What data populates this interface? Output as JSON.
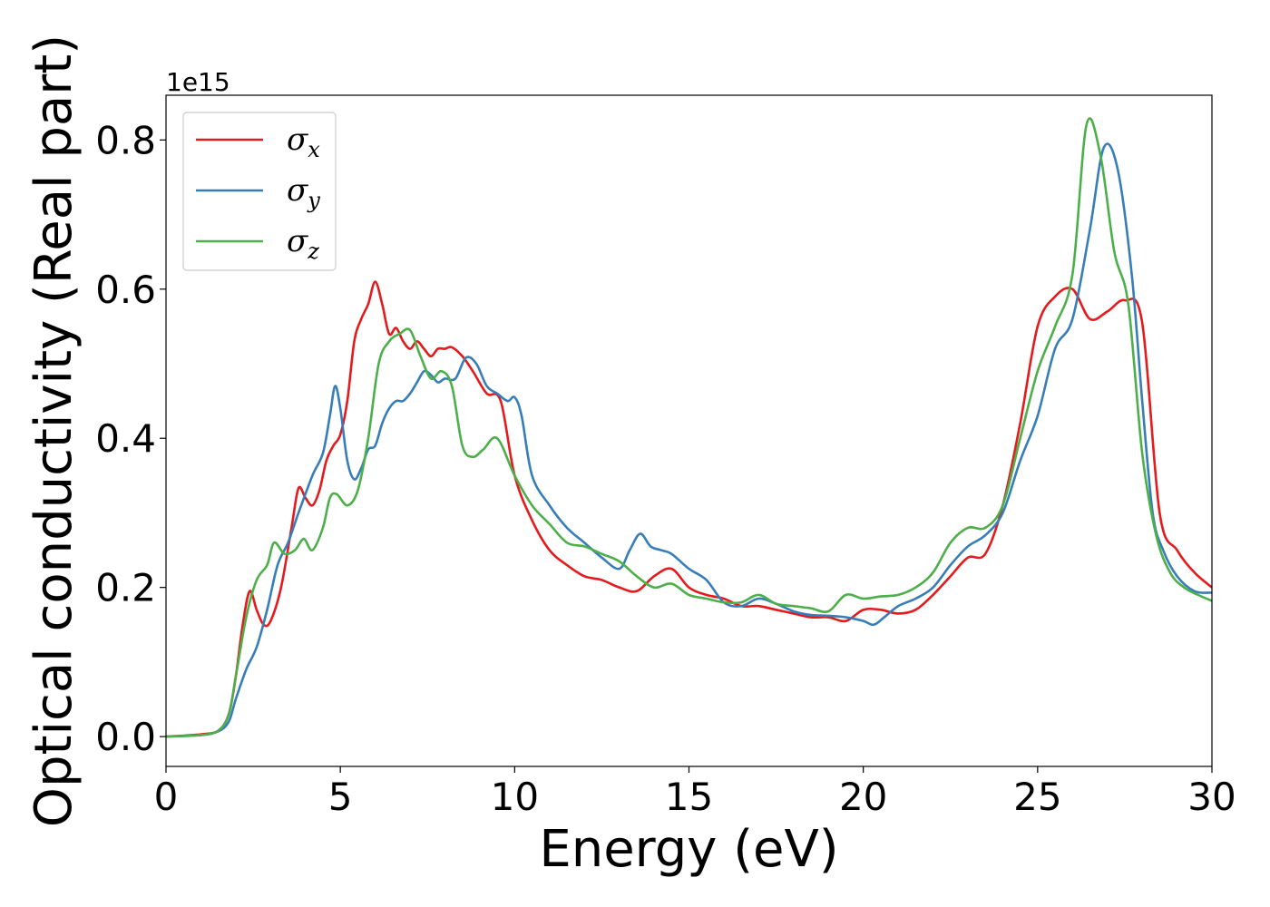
{
  "chart_data": {
    "type": "line",
    "xlabel": "Energy (eV)",
    "ylabel": "Optical conductivity (Real part)",
    "y_offset_label": "1e15",
    "y_scale_factor": 1000000000000000.0,
    "xlim": [
      0,
      30
    ],
    "ylim": [
      -0.04,
      0.86
    ],
    "xticks": [
      0,
      5,
      10,
      15,
      20,
      25,
      30
    ],
    "xtick_labels": [
      "0",
      "5",
      "10",
      "15",
      "20",
      "25",
      "30"
    ],
    "yticks": [
      0.0,
      0.2,
      0.4,
      0.6,
      0.8
    ],
    "ytick_labels": [
      "0.0",
      "0.2",
      "0.4",
      "0.6",
      "0.8"
    ],
    "grid": false,
    "legend_position": "top-left",
    "series": [
      {
        "name": "σx",
        "symbol": "σ",
        "subscript": "x",
        "color": "#e41a1c",
        "x": [
          0,
          1,
          1.5,
          1.8,
          2.0,
          2.2,
          2.4,
          2.6,
          2.8,
          3.0,
          3.3,
          3.6,
          3.8,
          4.0,
          4.2,
          4.4,
          4.6,
          4.8,
          5.0,
          5.2,
          5.4,
          5.6,
          5.8,
          6.0,
          6.2,
          6.4,
          6.6,
          6.8,
          7.0,
          7.2,
          7.4,
          7.6,
          7.8,
          8.0,
          8.2,
          8.5,
          8.8,
          9.2,
          9.6,
          10.0,
          10.5,
          11.0,
          11.5,
          12.0,
          12.5,
          13.0,
          13.5,
          14.0,
          14.5,
          15.0,
          15.5,
          16.0,
          16.5,
          17.0,
          17.5,
          18.0,
          18.5,
          19.0,
          19.5,
          20.0,
          20.5,
          21.0,
          21.5,
          22.0,
          22.5,
          23.0,
          23.5,
          24.0,
          24.5,
          25.0,
          25.5,
          26.0,
          26.5,
          27.0,
          27.5,
          28.0,
          28.5,
          29.0,
          29.5,
          30.0
        ],
        "y": [
          0.0,
          0.003,
          0.008,
          0.03,
          0.08,
          0.15,
          0.195,
          0.17,
          0.15,
          0.155,
          0.2,
          0.28,
          0.333,
          0.32,
          0.31,
          0.33,
          0.37,
          0.39,
          0.405,
          0.45,
          0.53,
          0.56,
          0.58,
          0.61,
          0.58,
          0.54,
          0.548,
          0.53,
          0.52,
          0.53,
          0.52,
          0.51,
          0.52,
          0.52,
          0.522,
          0.51,
          0.49,
          0.46,
          0.45,
          0.35,
          0.29,
          0.25,
          0.23,
          0.215,
          0.21,
          0.2,
          0.195,
          0.215,
          0.225,
          0.2,
          0.19,
          0.185,
          0.175,
          0.175,
          0.17,
          0.165,
          0.16,
          0.16,
          0.155,
          0.17,
          0.17,
          0.165,
          0.17,
          0.19,
          0.215,
          0.24,
          0.245,
          0.31,
          0.42,
          0.55,
          0.59,
          0.6,
          0.56,
          0.57,
          0.585,
          0.555,
          0.3,
          0.25,
          0.22,
          0.2
        ]
      },
      {
        "name": "σy",
        "symbol": "σ",
        "subscript": "y",
        "color": "#377eb8",
        "x": [
          0,
          1,
          1.5,
          1.8,
          2.0,
          2.3,
          2.6,
          2.9,
          3.2,
          3.5,
          3.8,
          4.2,
          4.5,
          4.7,
          4.85,
          5.0,
          5.2,
          5.4,
          5.6,
          5.8,
          6.0,
          6.2,
          6.4,
          6.6,
          6.8,
          7.0,
          7.2,
          7.4,
          7.6,
          7.8,
          8.0,
          8.3,
          8.6,
          8.9,
          9.2,
          9.5,
          9.8,
          10.0,
          10.2,
          10.5,
          11.0,
          11.5,
          12.0,
          12.5,
          13.0,
          13.3,
          13.6,
          13.9,
          14.2,
          14.5,
          15.0,
          15.5,
          16.0,
          16.5,
          17.0,
          17.5,
          18.0,
          18.5,
          19.0,
          19.5,
          20.0,
          20.3,
          20.6,
          21.0,
          21.5,
          22.0,
          22.5,
          23.0,
          23.5,
          24.0,
          24.5,
          25.0,
          25.5,
          26.0,
          26.5,
          26.9,
          27.3,
          27.7,
          28.0,
          28.3,
          28.6,
          29.0,
          29.5,
          30.0
        ],
        "y": [
          0.0,
          0.002,
          0.007,
          0.02,
          0.05,
          0.09,
          0.12,
          0.17,
          0.23,
          0.26,
          0.3,
          0.35,
          0.38,
          0.43,
          0.47,
          0.44,
          0.37,
          0.345,
          0.36,
          0.385,
          0.39,
          0.42,
          0.44,
          0.45,
          0.45,
          0.46,
          0.475,
          0.49,
          0.485,
          0.475,
          0.48,
          0.48,
          0.508,
          0.5,
          0.47,
          0.46,
          0.45,
          0.455,
          0.43,
          0.35,
          0.31,
          0.28,
          0.26,
          0.24,
          0.225,
          0.25,
          0.272,
          0.255,
          0.25,
          0.245,
          0.225,
          0.21,
          0.18,
          0.175,
          0.185,
          0.178,
          0.168,
          0.163,
          0.162,
          0.16,
          0.155,
          0.15,
          0.16,
          0.175,
          0.185,
          0.2,
          0.23,
          0.255,
          0.27,
          0.3,
          0.37,
          0.43,
          0.52,
          0.56,
          0.68,
          0.79,
          0.76,
          0.62,
          0.45,
          0.3,
          0.25,
          0.215,
          0.195,
          0.193
        ]
      },
      {
        "name": "σz",
        "symbol": "σ",
        "subscript": "z",
        "color": "#4daf4a",
        "x": [
          0,
          1,
          1.5,
          1.8,
          2.0,
          2.3,
          2.6,
          2.9,
          3.1,
          3.4,
          3.7,
          3.95,
          4.2,
          4.5,
          4.7,
          4.9,
          5.2,
          5.5,
          5.8,
          6.1,
          6.4,
          6.7,
          7.0,
          7.3,
          7.6,
          7.9,
          8.2,
          8.5,
          8.8,
          9.1,
          9.5,
          10.0,
          10.5,
          11.0,
          11.5,
          12.0,
          12.5,
          13.0,
          13.5,
          14.0,
          14.5,
          15.0,
          15.5,
          16.0,
          16.5,
          17.0,
          17.5,
          18.0,
          18.5,
          19.0,
          19.5,
          20.0,
          20.5,
          21.0,
          21.5,
          22.0,
          22.5,
          23.0,
          23.5,
          24.0,
          24.5,
          25.0,
          25.5,
          26.0,
          26.4,
          26.8,
          27.2,
          27.6,
          28.0,
          28.4,
          28.8,
          29.2,
          29.6,
          30.0
        ],
        "y": [
          0.0,
          0.002,
          0.008,
          0.03,
          0.08,
          0.16,
          0.21,
          0.23,
          0.26,
          0.245,
          0.25,
          0.265,
          0.25,
          0.28,
          0.32,
          0.325,
          0.31,
          0.33,
          0.4,
          0.5,
          0.53,
          0.54,
          0.545,
          0.51,
          0.48,
          0.49,
          0.47,
          0.39,
          0.375,
          0.385,
          0.4,
          0.35,
          0.31,
          0.285,
          0.26,
          0.255,
          0.245,
          0.235,
          0.215,
          0.2,
          0.205,
          0.19,
          0.185,
          0.18,
          0.18,
          0.19,
          0.178,
          0.175,
          0.172,
          0.168,
          0.19,
          0.185,
          0.188,
          0.19,
          0.2,
          0.22,
          0.26,
          0.28,
          0.28,
          0.31,
          0.4,
          0.49,
          0.55,
          0.62,
          0.82,
          0.78,
          0.65,
          0.58,
          0.38,
          0.27,
          0.22,
          0.2,
          0.19,
          0.182
        ]
      }
    ]
  }
}
